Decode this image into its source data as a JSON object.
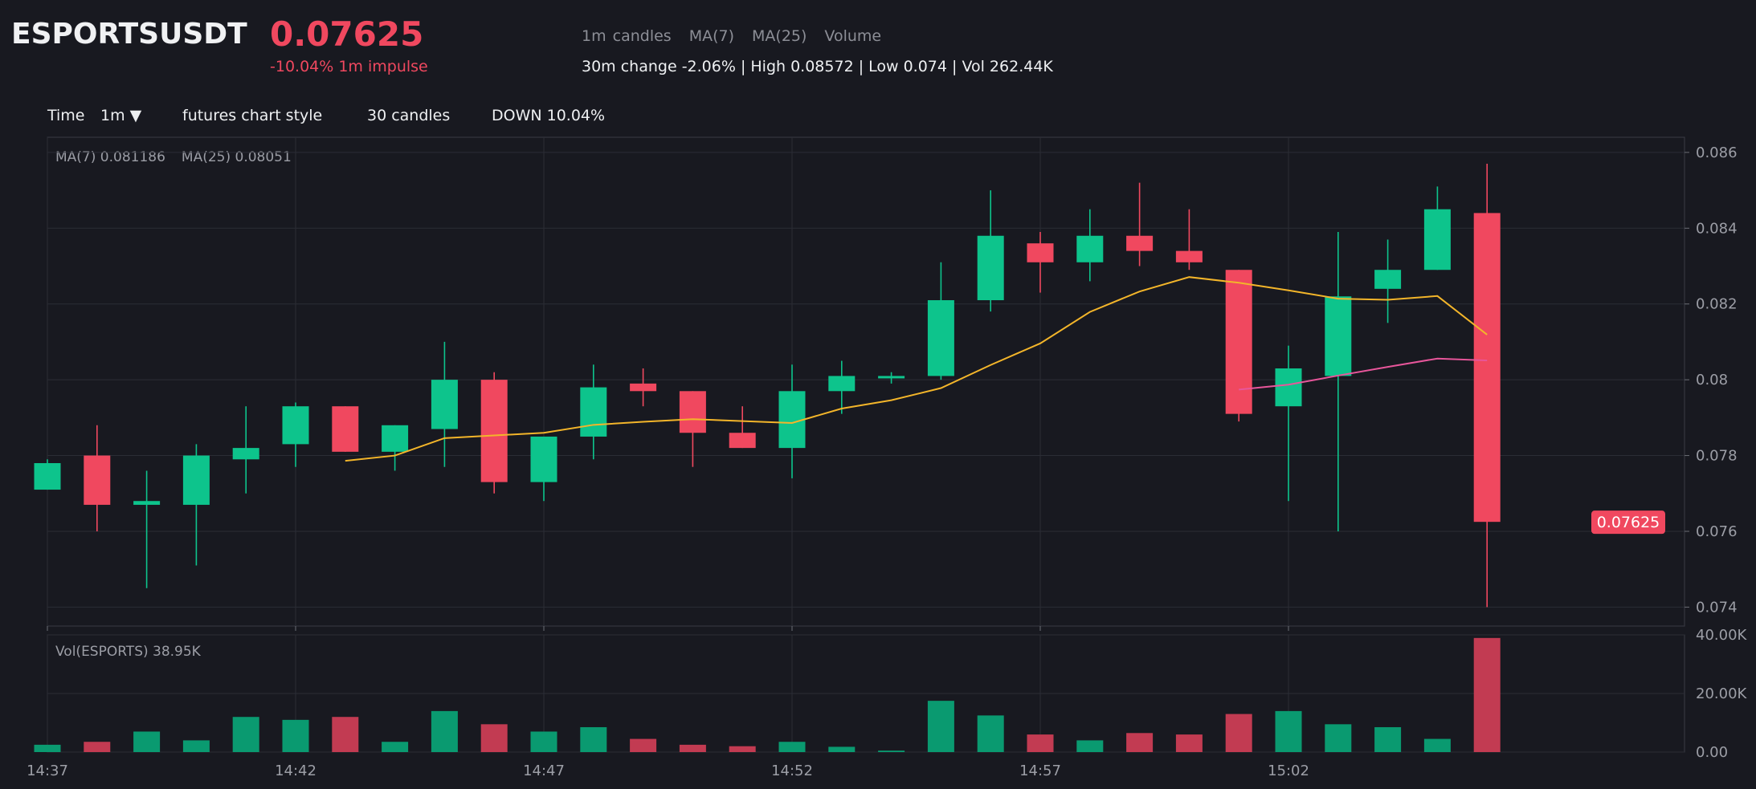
{
  "header": {
    "symbol": "ESPORTSUSDT",
    "price": "0.07625",
    "impulse": "-10.04% 1m impulse",
    "legend": [
      "1m candles",
      "MA(7)",
      "MA(25)",
      "Volume"
    ],
    "stats": "30m change -2.06% | High 0.08572 | Low 0.074 | Vol 262.44K"
  },
  "toolbar": {
    "time_label": "Time",
    "interval": "1m ▼",
    "style": "futures chart style",
    "candles": "30 candles",
    "direction": "DOWN 10.04%"
  },
  "indicators": {
    "ma7": "MA(7) 0.081186",
    "ma25": "MA(25) 0.08051",
    "volume": "Vol(ESPORTS) 38.95K"
  },
  "colors": {
    "up": "#0dc48c",
    "down": "#f0485f",
    "ma7": "#f3b52a",
    "ma25": "#e8569b",
    "grid": "#2b2d35",
    "axis": "#3a3c45"
  },
  "chart_data": {
    "type": "candlestick",
    "interval": "1m",
    "price_axis": {
      "ylim": [
        0.0735,
        0.0864
      ],
      "ticks": [
        "0.074",
        "0.076",
        "0.078",
        "0.08",
        "0.082",
        "0.084",
        "0.086"
      ]
    },
    "volume_axis": {
      "ylim": [
        0,
        40000
      ],
      "ticks": [
        "0.00",
        "20.00K",
        "40.00K"
      ]
    },
    "x_ticks": [
      "14:37",
      "14:42",
      "14:47",
      "14:52",
      "14:57",
      "15:02"
    ],
    "last_price_tag": "0.07625",
    "candles": [
      {
        "t": "14:37",
        "o": 0.0771,
        "h": 0.0779,
        "l": 0.0771,
        "c": 0.0778,
        "v": 2500
      },
      {
        "t": "14:38",
        "o": 0.078,
        "h": 0.0788,
        "l": 0.076,
        "c": 0.0767,
        "v": 3500
      },
      {
        "t": "14:39",
        "o": 0.0767,
        "h": 0.0776,
        "l": 0.0745,
        "c": 0.0768,
        "v": 7000
      },
      {
        "t": "14:40",
        "o": 0.0767,
        "h": 0.0783,
        "l": 0.0751,
        "c": 0.078,
        "v": 4000
      },
      {
        "t": "14:41",
        "o": 0.0779,
        "h": 0.0793,
        "l": 0.077,
        "c": 0.0782,
        "v": 12000
      },
      {
        "t": "14:42",
        "o": 0.0783,
        "h": 0.0794,
        "l": 0.0777,
        "c": 0.0793,
        "v": 11000
      },
      {
        "t": "14:43",
        "o": 0.0793,
        "h": 0.0793,
        "l": 0.0781,
        "c": 0.0781,
        "v": 12000
      },
      {
        "t": "14:44",
        "o": 0.0781,
        "h": 0.0788,
        "l": 0.0776,
        "c": 0.0788,
        "v": 3500
      },
      {
        "t": "14:45",
        "o": 0.0787,
        "h": 0.081,
        "l": 0.0777,
        "c": 0.08,
        "v": 14000
      },
      {
        "t": "14:46",
        "o": 0.08,
        "h": 0.0802,
        "l": 0.077,
        "c": 0.0773,
        "v": 9500
      },
      {
        "t": "14:47",
        "o": 0.0773,
        "h": 0.0785,
        "l": 0.0768,
        "c": 0.0785,
        "v": 7000
      },
      {
        "t": "14:48",
        "o": 0.0785,
        "h": 0.0804,
        "l": 0.0779,
        "c": 0.0798,
        "v": 8500
      },
      {
        "t": "14:49",
        "o": 0.0799,
        "h": 0.0803,
        "l": 0.0793,
        "c": 0.0797,
        "v": 4500
      },
      {
        "t": "14:50",
        "o": 0.0797,
        "h": 0.0797,
        "l": 0.0777,
        "c": 0.0786,
        "v": 2500
      },
      {
        "t": "14:51",
        "o": 0.0786,
        "h": 0.0793,
        "l": 0.0782,
        "c": 0.0782,
        "v": 2000
      },
      {
        "t": "14:52",
        "o": 0.0782,
        "h": 0.0804,
        "l": 0.0774,
        "c": 0.0797,
        "v": 3500
      },
      {
        "t": "14:53",
        "o": 0.0797,
        "h": 0.0805,
        "l": 0.0791,
        "c": 0.0801,
        "v": 1800
      },
      {
        "t": "14:54",
        "o": 0.0801,
        "h": 0.0802,
        "l": 0.0799,
        "c": 0.0801,
        "v": 500
      },
      {
        "t": "14:55",
        "o": 0.0801,
        "h": 0.0831,
        "l": 0.08,
        "c": 0.0821,
        "v": 17500
      },
      {
        "t": "14:56",
        "o": 0.0821,
        "h": 0.085,
        "l": 0.0818,
        "c": 0.0838,
        "v": 12500
      },
      {
        "t": "14:57",
        "o": 0.0836,
        "h": 0.0839,
        "l": 0.0823,
        "c": 0.0831,
        "v": 6000
      },
      {
        "t": "14:58",
        "o": 0.0831,
        "h": 0.0845,
        "l": 0.0826,
        "c": 0.0838,
        "v": 4000
      },
      {
        "t": "14:59",
        "o": 0.0838,
        "h": 0.0852,
        "l": 0.083,
        "c": 0.0834,
        "v": 6500
      },
      {
        "t": "15:00",
        "o": 0.0834,
        "h": 0.0845,
        "l": 0.0829,
        "c": 0.0831,
        "v": 6000
      },
      {
        "t": "15:01",
        "o": 0.0829,
        "h": 0.0829,
        "l": 0.0789,
        "c": 0.0791,
        "v": 13000
      },
      {
        "t": "15:02",
        "o": 0.0793,
        "h": 0.0809,
        "l": 0.0768,
        "c": 0.0803,
        "v": 14000
      },
      {
        "t": "15:03",
        "o": 0.0801,
        "h": 0.0839,
        "l": 0.076,
        "c": 0.0822,
        "v": 9500
      },
      {
        "t": "15:04",
        "o": 0.0824,
        "h": 0.0837,
        "l": 0.0815,
        "c": 0.0829,
        "v": 8500
      },
      {
        "t": "15:05",
        "o": 0.0829,
        "h": 0.0851,
        "l": 0.0829,
        "c": 0.0845,
        "v": 4500
      },
      {
        "t": "15:06",
        "o": 0.0844,
        "h": 0.0857,
        "l": 0.074,
        "c": 0.07625,
        "v": 38950
      }
    ],
    "ma7": [
      null,
      null,
      null,
      null,
      null,
      null,
      0.07786,
      0.078,
      0.07846,
      0.07853,
      0.0786,
      0.07881,
      0.07889,
      0.07896,
      0.07891,
      0.07886,
      0.07924,
      0.07946,
      0.07978,
      0.08039,
      0.08096,
      0.08179,
      0.08233,
      0.08271,
      0.08256,
      0.08236,
      0.08214,
      0.08211,
      0.08221,
      0.08119
    ],
    "ma25": [
      null,
      null,
      null,
      null,
      null,
      null,
      null,
      null,
      null,
      null,
      null,
      null,
      null,
      null,
      null,
      null,
      null,
      null,
      null,
      null,
      null,
      null,
      null,
      null,
      0.07974,
      0.07987,
      0.08011,
      0.08034,
      0.08056,
      0.08051
    ]
  }
}
